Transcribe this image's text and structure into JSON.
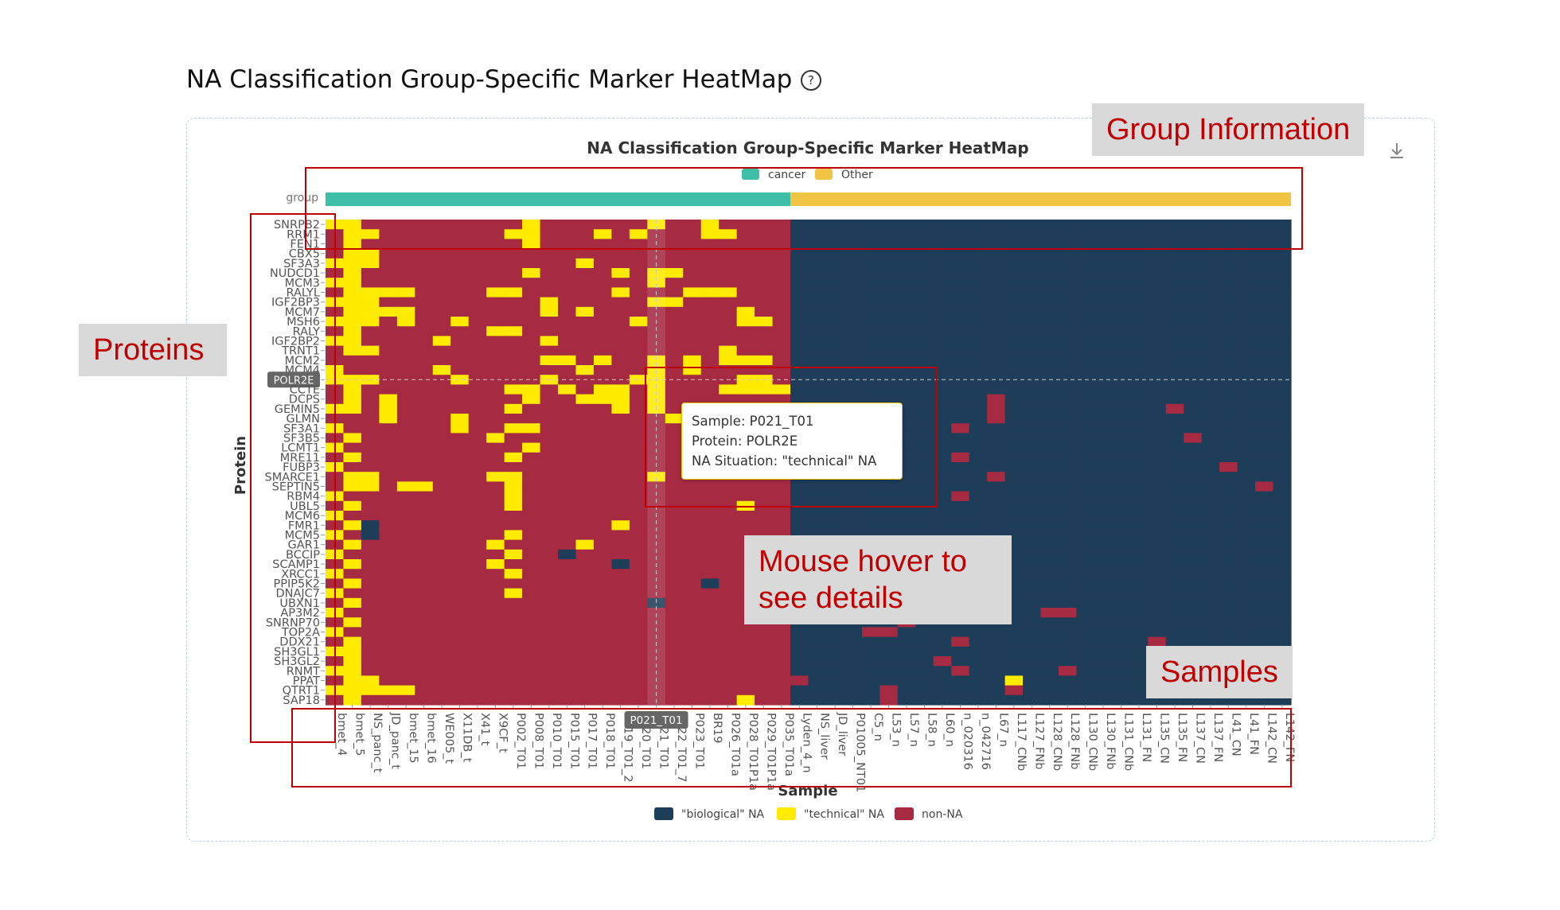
{
  "page": {
    "title": "NA Classification Group-Specific Marker HeatMap",
    "help_icon": "question-circle-icon"
  },
  "toolbar": {
    "download_icon": "download-icon"
  },
  "annotations": {
    "group_info": "Group Information",
    "proteins": "Proteins",
    "mouse_hover": "Mouse hover to see details",
    "samples": "Samples"
  },
  "tooltip": {
    "sample": "Sample: P021_T01",
    "protein": "Protein: POLR2E",
    "na": "NA Situation: \"technical\" NA"
  },
  "hover": {
    "protein": "POLR2E",
    "sample": "P021_T01"
  },
  "colors": {
    "cancer": "#40bfa8",
    "other": "#f1c444",
    "biological": "#1e3d59",
    "technical": "#ffeb00",
    "non_na": "#a62a42"
  },
  "chart_data": {
    "type": "heatmap",
    "title": "NA Classification Group-Specific Marker HeatMap",
    "xlabel": "Sample",
    "ylabel": "Protein",
    "group_label": "group",
    "group_legend": [
      "cancer",
      "Other"
    ],
    "cancer_count": 26,
    "legend": [
      "\"biological\" NA",
      "\"technical\" NA",
      "non-NA"
    ],
    "proteins": [
      "SNRPB2",
      "RRM1",
      "FEN1",
      "CBX5",
      "SF3A3",
      "NUDCD1",
      "MCM3",
      "RALYL",
      "IGF2BP3",
      "MCM7",
      "MSH6",
      "RALY",
      "IGF2BP2",
      "TRNT1",
      "MCM2",
      "MCM4",
      "POLR2E",
      "CCTE",
      "DCPS",
      "GEMIN5",
      "GLMN",
      "SF3A1",
      "SF3B5",
      "LCMT1",
      "MRE11",
      "FUBP3",
      "SMARCE1",
      "SEPTIN5",
      "RBM4",
      "UBL5",
      "MCM6",
      "FMR1",
      "MCM5",
      "GAR1",
      "BCCIP",
      "SCAMP1",
      "XRCC1",
      "PPIP5K2",
      "DNAJC7",
      "UBXN1",
      "AP3M2",
      "SNRNP70",
      "TOP2A",
      "DDX21",
      "SH3GL1",
      "SH3GL2",
      "RNMT",
      "PPAT",
      "QTRT1",
      "SAP18"
    ],
    "samples": [
      "bmet_4",
      "bmet_5",
      "NS_panc_t",
      "JD_panc_t",
      "bmet_15",
      "bmet_16",
      "WE005_t",
      "X11DB_t",
      "X41_t",
      "X9CF_t",
      "P002_T01",
      "P008_T01",
      "P010_T01",
      "P015_T01",
      "P017_T01",
      "P018_T01",
      "P019_T01_2",
      "P020_T01",
      "P021_T01",
      "P022_T01_7",
      "P023_T01",
      "BR19",
      "P026_T01a",
      "P028_T01P1a",
      "P029_T01P1a",
      "P035_T01a",
      "Lyden_4_n",
      "NS_liver",
      "JD_liver",
      "P01005_NT01",
      "C5_n",
      "L53_n",
      "L57_n",
      "L58_n",
      "L60_n",
      "n_020316",
      "n_042716",
      "L67_n",
      "L117_CNb",
      "L127_FNb",
      "L128_CNb",
      "L128_FNb",
      "L130_CNb",
      "L130_FNb",
      "L131_CNb",
      "L131_FN",
      "L135_CN",
      "L135_FN",
      "L137_CN",
      "L137_FN",
      "L41_CN",
      "L41_FN",
      "L142_CN",
      "L142_FN"
    ],
    "matrix": [
      "TTNNNNNNNNNTNNNNNNTNNTNNNNBBBBBBBBBBBBBBBBBBBBBBBBBBBB",
      "NTTNNNNNNNTTNNNTNTNNNTTNNNBBBBBBBBBBBBBBBBBBBBBBBBBBBB",
      "NTNNNNNNNNNTNNNNNNNNNNNNNNBBBBBBBBBBBBBBBBBBBBBBBBBBBB",
      "NTTNNNNNNNNNNNNNNNNNNNNNNNBBBBBBBBBBBBBBBBBBBBBBBBBBBB",
      "TTTNNNNNNNNNNNTNNNNNNNNNNNBBBBBBBBBBBBBBBBBBBBBBBBBBBB",
      "NTNNNNNNNNNTNNNNTNTTNNNNNNBBBBBBBBBBBBBBBBBBBBBBBBBBBB",
      "TTNNNNNNNNNNNNNNNNTNNNNNNNBBBBBBBBBBBBBBBBBBBBBBBBBBBB",
      "NTTTTNNNNTTNNNNNTNNNTTTNNNBBBBBBBBBBBBBBBBBBBBBBBBBBBB",
      "TTTNNNNNNNNNTNNNNNTTNNNNNNBBBBBBBBBBBBBBBBBBBBBBBBBBBB",
      "NTTTTNNNNNNNTNTNNNNNNNNTNNBBBBBBBBBBBBBBBBBBBBBBBBBBBB",
      "TTTNTNNTNNNNNNNNNTNNNNNTTNBBBBBBBBBBBBBBBBBBBBBBBBBBBB",
      "NTNNNNNNNTTNNNNNNNNNNNNNNNBBBBBBBBBBBBBBBBBBBBBBBBBBBB",
      "TTNNNNTNNNNNTNNNNNNNNNNNNNBBBBBBBBBBBBBBBBBBBBBBBBBBBB",
      "NTTNNNNNNNNNNNNNNNNNNNTNNNBBBBBBBBBBBBBBBBBBBBBBBBBBBB",
      "NNNNNNNNNNNNTTNTNNTNTNTTTNBBBBBBBBBBBBBBBBBBBBBBBBBBBB",
      "TNNNNNTNNNNNNNTNNNTNTNNNNNBBBBBBBBBBBBBBBBBBBBBBBBBBBB",
      "TTTNNNNTNNNNTNNNNTTNNNNTTNBBBBBBBBBBBBBBBBBBBBBBBBBBBB",
      "NTNNNNNNNNTTNTNTTNTNNNTTTTBBBBBBBBBBBBBBBBBBBBBBBBBBBB",
      "NTNTNNNNNNNTNNTTTNTNNNNNNNBBBBBBBBBBBNBBBBBBBBBBBBBBBB",
      "TTNTNNNNNNTNNNNNTNTNNNNNNNBBBBBBBBBBBNBBBBBBBBBNBBBBBB",
      "NNNTNNNTNNNNNNNNNNNTNNNNNNBBBBBBBBBBBNBBBBBBBBBBBBBBBB",
      "TNNNNNNTNNTTNNNNNNNNNNNNNNBBBBBBBBBNBBBBBBBBBBBBBBBBBB",
      "NTNNNNNNNTNNNNNNNNNNNNNNNNBBBBBBBBBBBBBBBBBBBBBBNBBBBB",
      "TNNNNNNNNNNTNNNNNNNNNNNNNNBBBBBBBBBBBBBBBBBBBBBBBBBBBB",
      "NTNNNNNNNNTNNNNNNNNNNNNNNNBBBBBBBBBNBBBBBBBBBBBBBBBBBB",
      "TNNNNNNNNNNNNNNNNNNNNNNNNNBBBBBBBBBBBBBBBBBBBBBBBBNBBB",
      "NTTNNNNNNTTNNNNNNNTNNNNNNNBBBBBBBBBBBNBBBBBBBBBBBBBBBB",
      "NTTNTTNNNNTNNNNNNNNNNNNNNNBBBBBBBBBBBBBBBBBBBBBBBBBBNB",
      "TNNNNNNNNNTNNNNNNNNNNNNNNNBBBBBBBBBNBBBBBBBBBBBBBBBBBB",
      "NTNNNNNNNNTNNNNNNNNNNNNTNNBBBBBBBBBBBBBBBBBBBBBBBBBBBB",
      "TNNNNNNNNNNNNNNNNNNNNNNNNNBBBBBBBBBBBBBBBBBBBBBBBBBBBB",
      "NTBNNNNNNNNNNNNNTNNNNNNNNNBBBBBBBBBBBBBBBBBBBBBBBBBBBB",
      "TNBNNNNNNNTNNNNNNNNNNNNNNNBBBBBBBBBBBBBBBBBBBBBBBBBBBB",
      "NTNNNNNNNTNNNNTNNNNNNNNNNNBBBBBBBBBBBBBBBBBBBBBBBBBBBB",
      "TNNNNNNNNNTNNBNNNNNNNNNNNNBBBBBBBBBBBBBBBBBBBBBBBBBBBB",
      "NTNNNNNNNTNNNNNNBNNNNNNNNNBBBBBBBBBBBBBBBBBBBBBBBBBBBB",
      "TNNNNNNNNNTNNNNNNNNNNNNNNBBBBBBBBBBBBBBBBBBBBBBBBBBBBB",
      "NTNNNNNNNNNNNNNNNNNNNBNNNNBBBBBBBBBBBBBBBBBBBBBBBBBBBB",
      "TNNNNNNNNNTNNNNNNNNNNNNNNNBBBBBBBBBBBBBBBBBBBBBBBBBBBB",
      "NTNNNNNNNNNNNNNNNNBNNNNNNNBBBBBBBBBBBBBBBBBBBBBBBBBBBB",
      "TNNNNNNNNNNNNNNNNNNNNNNNNNBBBBBBBBBBBBBBNNBBBBBBBBBBBB",
      "NTNNNNNNNNNNNNNNNNNNNNNNNNBBBBBBNBBBBBBBBBBBBBBBBBBBBB",
      "TNNNNNNNNNNNNNNNNNNNNNNNNNBBBBNNBBBBBBBBBBBBBBBBBBBBBB",
      "NTNNNNNNNNNNNNNNNNNNNNNNNNBBBBBBBBBNBBBBBBBBBBNBBBBBBB",
      "TTNNNNNNNNNNNNNNNNNNNNNNNNBBBBBBBBBBBBBBBBBBBBBBBBBBBB",
      "NTNNNNNNNNNNNNNNNNNNNNNNNNBBBBBBBBNBBBBBBBBBBBBBBBBBBB",
      "TTNNNNNNNNNNNNNNNNNNNNNNNNBBBBBBBBBNBBBBBNBBBBBBBBBBBB",
      "NTTNNNNNNNNNNNNNNNNNNNNNNNNBBBBBBBBBBBTBBBBBBBBBBBBBBB",
      "TTTTTNNNNNNNNNNNNNNNNNNNNNBBBBBNBBBBBBNBBBBBBBBBBBBBBB",
      "NTNNNNNNNNNNNNNNNNNNNNNTNNBBBBBNBBBBBBBBBBBBBBBBBBBBBB"
    ]
  }
}
